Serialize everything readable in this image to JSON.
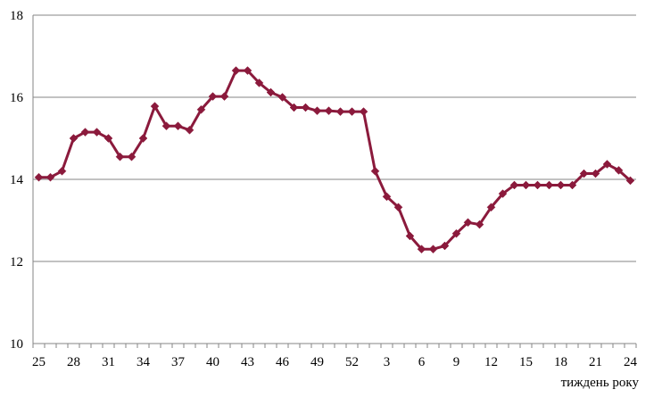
{
  "chart_data": {
    "type": "line",
    "title": "",
    "xlabel": "тиждень  року",
    "ylabel": "",
    "ylim": [
      10,
      18
    ],
    "yticks": [
      10,
      12,
      14,
      16,
      18
    ],
    "grid": "horizontal",
    "xtick_labels": [
      "25",
      "28",
      "31",
      "34",
      "37",
      "40",
      "43",
      "46",
      "49",
      "52",
      "3",
      "6",
      "9",
      "12",
      "15",
      "18",
      "21",
      "24"
    ],
    "categories": [
      "25",
      "26",
      "27",
      "28",
      "29",
      "30",
      "31",
      "32",
      "33",
      "34",
      "35",
      "36",
      "37",
      "38",
      "39",
      "40",
      "41",
      "42",
      "43",
      "44",
      "45",
      "46",
      "47",
      "48",
      "49",
      "50",
      "51",
      "52",
      "1",
      "2",
      "3",
      "4",
      "5",
      "6",
      "7",
      "8",
      "9",
      "10",
      "11",
      "12",
      "13",
      "14",
      "15",
      "16",
      "17",
      "18",
      "19",
      "20",
      "21",
      "22",
      "23",
      "24"
    ],
    "series": [
      {
        "color": "#8B1A3C",
        "marker": "diamond",
        "values": [
          14.05,
          14.05,
          14.2,
          15.0,
          15.15,
          15.15,
          15.0,
          14.55,
          14.55,
          15.0,
          15.78,
          15.3,
          15.3,
          15.2,
          15.7,
          16.02,
          16.02,
          16.65,
          16.65,
          16.35,
          16.12,
          16.0,
          15.75,
          15.75,
          15.67,
          15.67,
          15.65,
          15.65,
          15.65,
          14.2,
          13.58,
          13.32,
          12.62,
          12.3,
          12.3,
          12.38,
          12.68,
          12.95,
          12.9,
          13.32,
          13.65,
          13.86,
          13.86,
          13.86,
          13.86,
          13.86,
          13.86,
          14.14,
          14.14,
          14.37,
          14.22,
          13.97
        ]
      }
    ]
  }
}
